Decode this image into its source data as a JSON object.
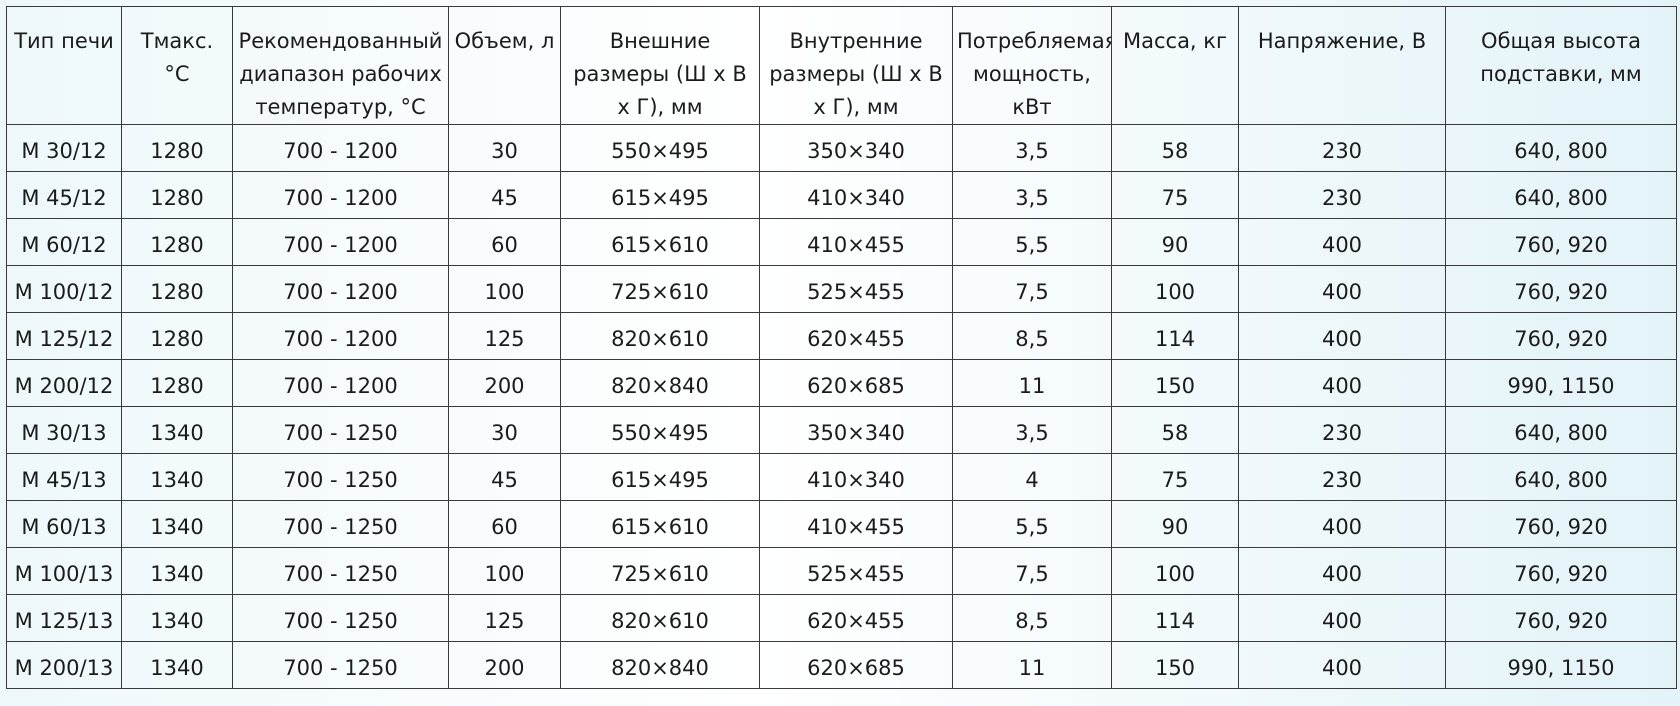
{
  "headers": [
    "Тип печи",
    "Tмакс. °С",
    "Рекомендованный диапазон рабочих температур, °С",
    "Объем, л",
    "Внешние размеры (Ш х В х Г), мм",
    "Внутренние размеры (Ш х В х Г), мм",
    "Потребляемая мощность, кВт",
    "Масса, кг",
    "Напряжение, В",
    "Общая высота подставки, мм"
  ],
  "rows": [
    [
      "M 30/12",
      "1280",
      "700 - 1200",
      "30",
      "550×495",
      "350×340",
      "3,5",
      "58",
      "230",
      "640, 800"
    ],
    [
      "M 45/12",
      "1280",
      "700 - 1200",
      "45",
      "615×495",
      "410×340",
      "3,5",
      "75",
      "230",
      "640, 800"
    ],
    [
      "M 60/12",
      "1280",
      "700 - 1200",
      "60",
      "615×610",
      "410×455",
      "5,5",
      "90",
      "400",
      "760, 920"
    ],
    [
      "M 100/12",
      "1280",
      "700 - 1200",
      "100",
      "725×610",
      "525×455",
      "7,5",
      "100",
      "400",
      "760, 920"
    ],
    [
      "M 125/12",
      "1280",
      "700 - 1200",
      "125",
      "820×610",
      "620×455",
      "8,5",
      "114",
      "400",
      "760, 920"
    ],
    [
      "M 200/12",
      "1280",
      "700 - 1200",
      "200",
      "820×840",
      "620×685",
      "11",
      "150",
      "400",
      "990, 1150"
    ],
    [
      "M 30/13",
      "1340",
      "700 - 1250",
      "30",
      "550×495",
      "350×340",
      "3,5",
      "58",
      "230",
      "640, 800"
    ],
    [
      "M 45/13",
      "1340",
      "700 - 1250",
      "45",
      "615×495",
      "410×340",
      "4",
      "75",
      "230",
      "640, 800"
    ],
    [
      "M 60/13",
      "1340",
      "700 - 1250",
      "60",
      "615×610",
      "410×455",
      "5,5",
      "90",
      "400",
      "760, 920"
    ],
    [
      "M 100/13",
      "1340",
      "700 - 1250",
      "100",
      "725×610",
      "525×455",
      "7,5",
      "100",
      "400",
      "760, 920"
    ],
    [
      "M 125/13",
      "1340",
      "700 - 1250",
      "125",
      "820×610",
      "620×455",
      "8,5",
      "114",
      "400",
      "760, 920"
    ],
    [
      "M 200/13",
      "1340",
      "700 - 1250",
      "200",
      "820×840",
      "620×685",
      "11",
      "150",
      "400",
      "990, 1150"
    ]
  ]
}
